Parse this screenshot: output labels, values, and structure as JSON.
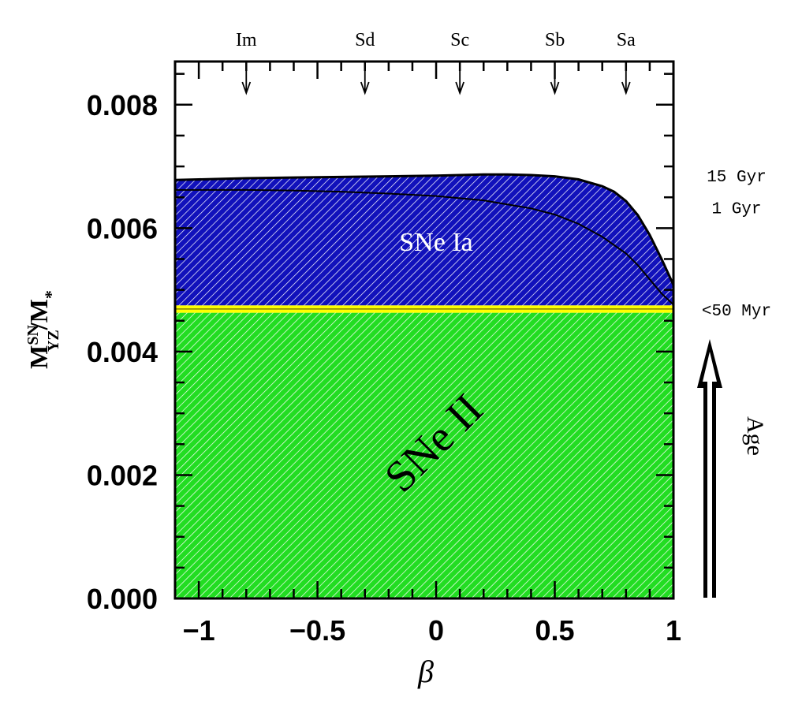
{
  "chart_data": {
    "type": "area",
    "xlabel": "β",
    "ylabel": {
      "main": "M",
      "sup": "SN",
      "sub": "YZ",
      "tail": "/M",
      "tail_sub": "*"
    },
    "xlim": [
      -1.1,
      1.0
    ],
    "ylim": [
      0.0,
      0.0087
    ],
    "x_ticks": [
      -1,
      -0.5,
      0,
      0.5,
      1
    ],
    "x_tick_labels": [
      "−1",
      "−0.5",
      "0",
      "0.5",
      "1"
    ],
    "y_ticks": [
      0.0,
      0.002,
      0.004,
      0.006,
      0.008
    ],
    "y_tick_labels": [
      "0.000",
      "0.002",
      "0.004",
      "0.006",
      "0.008"
    ],
    "morphology_markers": [
      {
        "label": "Im",
        "x": -0.8
      },
      {
        "label": "Sd",
        "x": -0.3
      },
      {
        "label": "Sc",
        "x": 0.1
      },
      {
        "label": "Sb",
        "x": 0.5
      },
      {
        "label": "Sa",
        "x": 0.8
      }
    ],
    "regions": [
      {
        "name": "SNe II",
        "label": "SNe II",
        "color": "#22dd22",
        "lower": 0.0,
        "upper": 0.00463
      },
      {
        "name": "SNe Ia",
        "label": "SNe Ia",
        "color": "#1111bb",
        "lower": 0.00475
      }
    ],
    "transition_band": {
      "lower": 0.00463,
      "upper": 0.00475,
      "color": "#ffff00"
    },
    "series": [
      {
        "name": "15 Gyr",
        "x": [
          -1.1,
          -1.0,
          -0.8,
          -0.6,
          -0.4,
          -0.2,
          0.0,
          0.2,
          0.3,
          0.4,
          0.5,
          0.6,
          0.7,
          0.75,
          0.8,
          0.85,
          0.9,
          0.95,
          1.0
        ],
        "y": [
          0.00678,
          0.00679,
          0.00681,
          0.00682,
          0.00683,
          0.00684,
          0.00685,
          0.00687,
          0.00687,
          0.00686,
          0.00684,
          0.00679,
          0.00668,
          0.00659,
          0.00644,
          0.00621,
          0.00589,
          0.0055,
          0.00508
        ]
      },
      {
        "name": "1 Gyr",
        "x": [
          -1.1,
          -1.0,
          -0.8,
          -0.6,
          -0.4,
          -0.2,
          0.0,
          0.2,
          0.4,
          0.5,
          0.6,
          0.7,
          0.8,
          0.85,
          0.9,
          0.95,
          1.0
        ],
        "y": [
          0.00662,
          0.00662,
          0.00662,
          0.00661,
          0.00659,
          0.00656,
          0.00652,
          0.00645,
          0.00632,
          0.00622,
          0.00607,
          0.00586,
          0.00559,
          0.0054,
          0.00517,
          0.00494,
          0.00476
        ]
      },
      {
        "name": "<50 Myr",
        "x": [
          -1.1,
          1.0
        ],
        "y": [
          0.00469,
          0.00469
        ]
      }
    ],
    "age_labels": [
      {
        "label": "15 Gyr",
        "y": 0.00686
      },
      {
        "label": "1 Gyr",
        "y": 0.00634
      },
      {
        "label": "<50 Myr",
        "y": 0.00469
      }
    ],
    "age_arrow_label": "Age",
    "colors": {
      "snia": "#1111bb",
      "snii": "#22dd22",
      "band": "#ffff00",
      "hatch": "#ffffff"
    }
  }
}
